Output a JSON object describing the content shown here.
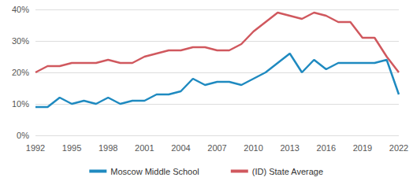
{
  "chart_data": {
    "type": "line",
    "x": [
      1992,
      1993,
      1994,
      1995,
      1996,
      1997,
      1998,
      1999,
      2000,
      2001,
      2002,
      2003,
      2004,
      2005,
      2006,
      2007,
      2008,
      2009,
      2010,
      2011,
      2012,
      2013,
      2014,
      2015,
      2016,
      2017,
      2018,
      2019,
      2020,
      2021,
      2022
    ],
    "series": [
      {
        "name": "Moscow Middle School",
        "color": "#1f8ac0",
        "values": [
          9,
          9,
          12,
          10,
          11,
          10,
          12,
          10,
          11,
          11,
          13,
          13,
          14,
          18,
          16,
          17,
          17,
          16,
          18,
          20,
          23,
          26,
          20,
          24,
          21,
          23,
          23,
          23,
          23,
          24,
          13
        ]
      },
      {
        "name": "(ID) State Average",
        "color": "#d0585e",
        "values": [
          20,
          22,
          22,
          23,
          23,
          23,
          24,
          23,
          23,
          25,
          26,
          27,
          27,
          28,
          28,
          27,
          27,
          29,
          33,
          36,
          39,
          38,
          37,
          39,
          38,
          36,
          36,
          31,
          31,
          25,
          20
        ]
      }
    ],
    "xlim": [
      1992,
      2022
    ],
    "xticks": [
      1992,
      1995,
      1998,
      2001,
      2004,
      2007,
      2010,
      2013,
      2016,
      2019,
      2022
    ],
    "ylim": [
      0,
      40
    ],
    "yticks": [
      {
        "value": 0,
        "label": "0%"
      },
      {
        "value": 10,
        "label": "10%"
      },
      {
        "value": 20,
        "label": "20%"
      },
      {
        "value": 30,
        "label": "30%"
      },
      {
        "value": 40,
        "label": "40%"
      }
    ],
    "grid": true,
    "legend": "bottom",
    "marker": "none"
  }
}
